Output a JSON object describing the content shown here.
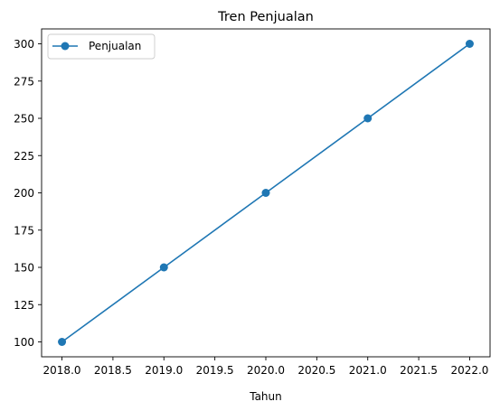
{
  "chart_data": {
    "type": "line",
    "title": "Tren Penjualan",
    "xlabel": "Tahun",
    "ylabel": "",
    "x": [
      2018,
      2019,
      2020,
      2021,
      2022
    ],
    "series": [
      {
        "name": "Penjualan",
        "values": [
          100,
          150,
          200,
          250,
          300
        ],
        "color": "#1f77b4",
        "marker": "circle"
      }
    ],
    "xlim": [
      2017.8,
      2022.2
    ],
    "ylim": [
      90,
      310
    ],
    "xticks": [
      2018.0,
      2018.5,
      2019.0,
      2019.5,
      2020.0,
      2020.5,
      2021.0,
      2021.5,
      2022.0
    ],
    "xtick_labels": [
      "2018.0",
      "2018.5",
      "2019.0",
      "2019.5",
      "2020.0",
      "2020.5",
      "2021.0",
      "2021.5",
      "2022.0"
    ],
    "yticks": [
      100,
      125,
      150,
      175,
      200,
      225,
      250,
      275,
      300
    ],
    "ytick_labels": [
      "100",
      "125",
      "150",
      "175",
      "200",
      "225",
      "250",
      "275",
      "300"
    ],
    "grid": false,
    "legend_position": "top-left"
  }
}
